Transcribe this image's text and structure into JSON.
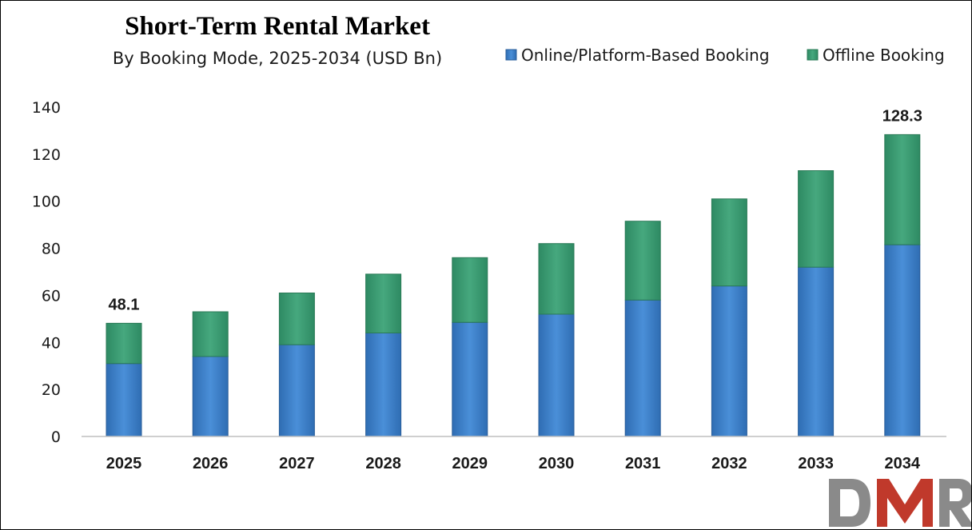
{
  "chart_data": {
    "type": "bar",
    "stacked": true,
    "title": "Short-Term Rental Market",
    "subtitle": "By Booking Mode, 2025-2034 (USD Bn)",
    "categories": [
      "2025",
      "2026",
      "2027",
      "2028",
      "2029",
      "2030",
      "2031",
      "2032",
      "2033",
      "2034"
    ],
    "series": [
      {
        "name": "Online/Platform-Based Booking",
        "color": "#3a7dc9",
        "values": [
          31.0,
          34.0,
          39.0,
          44.0,
          48.5,
          52.0,
          58.0,
          64.0,
          72.0,
          81.5
        ]
      },
      {
        "name": "Offline Booking",
        "color": "#3a9a72",
        "values": [
          17.1,
          19.0,
          22.0,
          25.0,
          27.5,
          30.0,
          33.5,
          37.0,
          41.0,
          46.8
        ]
      }
    ],
    "data_labels": [
      {
        "category": "2025",
        "text": "48.1"
      },
      {
        "category": "2034",
        "text": "128.3"
      }
    ],
    "ylim": [
      0,
      140
    ],
    "yticks": [
      0,
      20,
      40,
      60,
      80,
      100,
      120,
      140
    ],
    "xlabel": "",
    "ylabel": "",
    "grid": false,
    "legend_position": "top-right"
  },
  "logo": {
    "text": "DMR",
    "colors": [
      "#8a8a8a",
      "#c0392b",
      "#8a8a8a"
    ]
  }
}
